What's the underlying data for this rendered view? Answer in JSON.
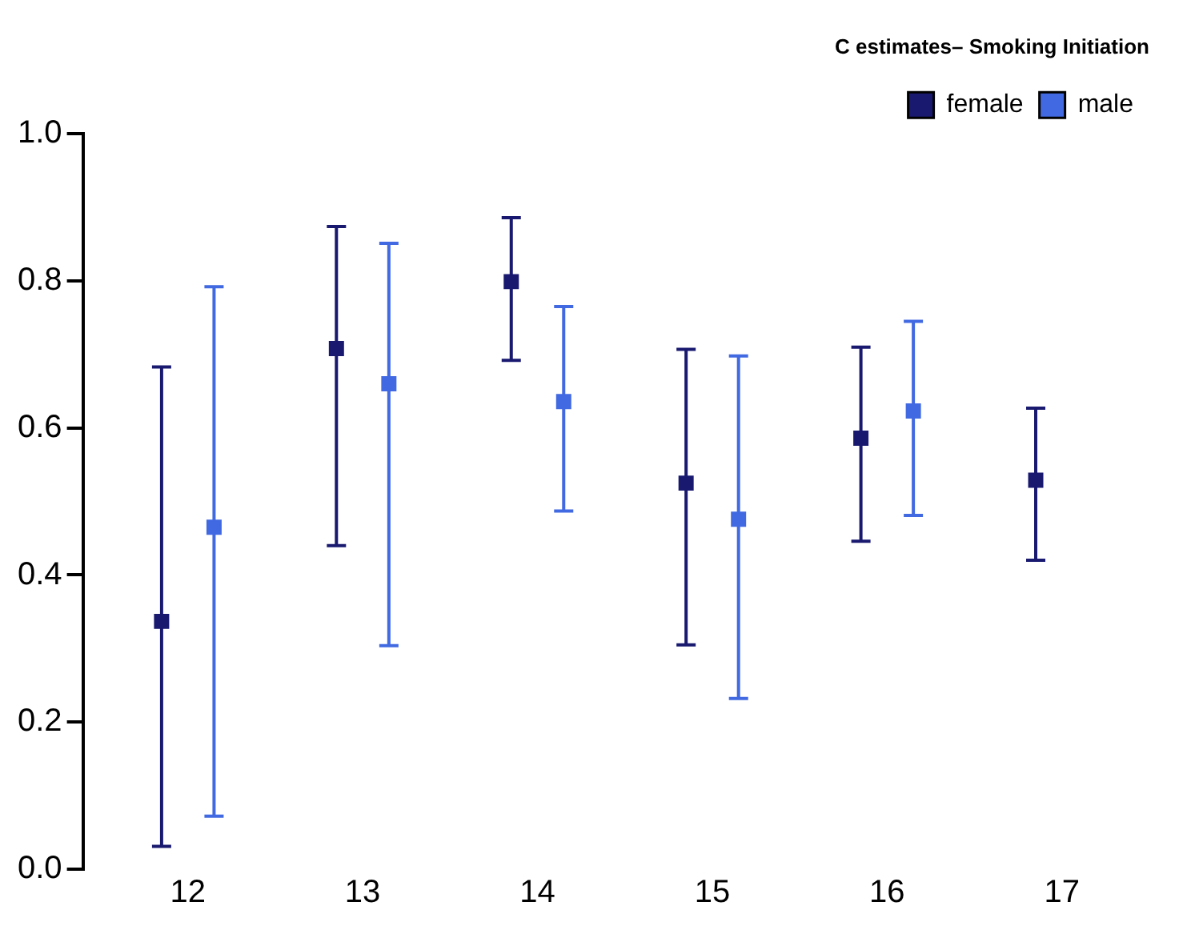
{
  "chart_data": {
    "type": "scatter",
    "title": "C estimates– Smoking Initiation",
    "categories": [
      "12",
      "13",
      "14",
      "15",
      "16",
      "17"
    ],
    "series": [
      {
        "name": "female",
        "color": "#191970",
        "values": [
          0.337,
          0.708,
          0.799,
          0.525,
          0.586,
          0.529
        ],
        "errors": [
          [
            0.031,
            0.683
          ],
          [
            0.44,
            0.874
          ],
          [
            0.692,
            0.886
          ],
          [
            0.305,
            0.707
          ],
          [
            0.446,
            0.71
          ],
          [
            0.42,
            0.627
          ]
        ]
      },
      {
        "name": "male",
        "color": "#4169e1",
        "values": [
          0.465,
          0.66,
          0.636,
          0.476,
          0.623,
          null
        ],
        "errors": [
          [
            0.072,
            0.792
          ],
          [
            0.304,
            0.851
          ],
          [
            0.487,
            0.765
          ],
          [
            0.232,
            0.698
          ],
          [
            0.481,
            0.745
          ],
          null
        ]
      }
    ],
    "ylim": [
      0,
      1
    ],
    "yticks": [
      {
        "value": 0,
        "label": "0.0"
      },
      {
        "value": 0.2,
        "label": "0.2"
      },
      {
        "value": 0.4,
        "label": "0.4"
      },
      {
        "value": 0.6,
        "label": "0.6"
      },
      {
        "value": 0.8,
        "label": "0.8"
      },
      {
        "value": 1,
        "label": "1.0"
      }
    ],
    "marker": "square",
    "legend": "top right",
    "grid": false
  }
}
